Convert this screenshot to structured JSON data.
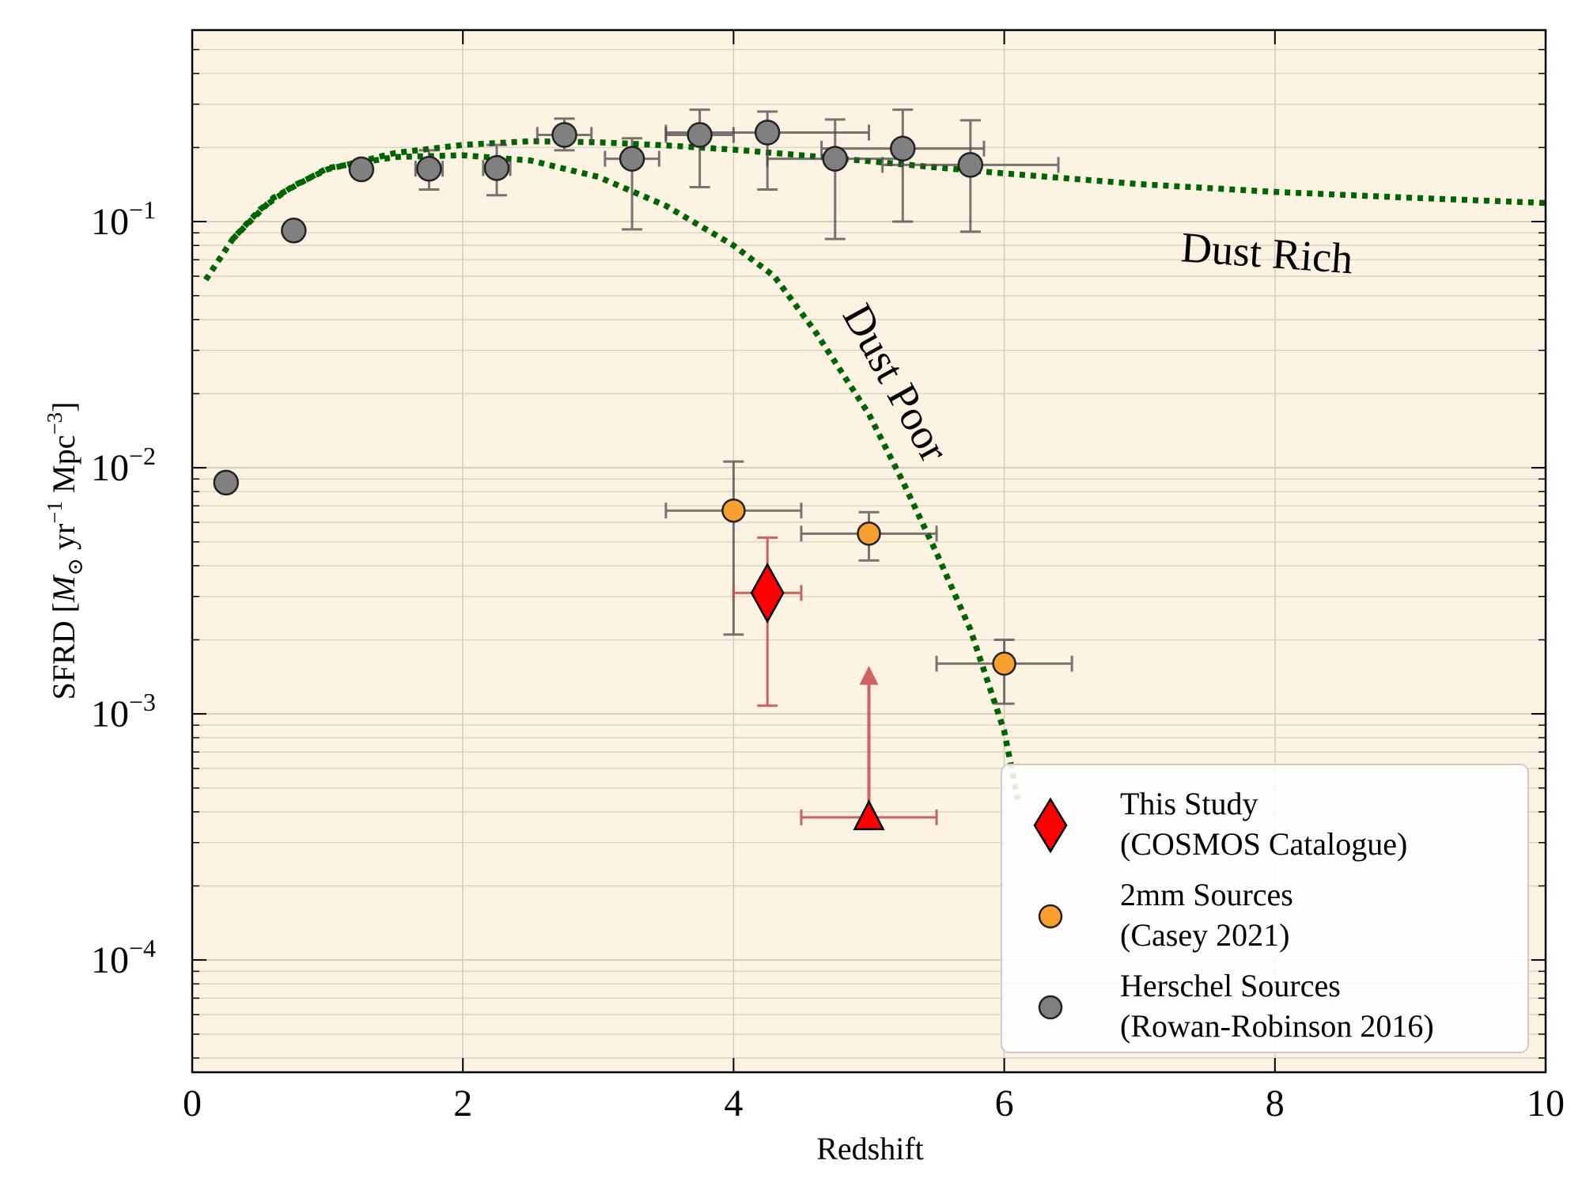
{
  "chart_data": {
    "type": "scatter",
    "xlabel": "Redshift",
    "ylabel": "SFRD [M⊙ yr⁻¹ Mpc⁻³]",
    "xlim": [
      0,
      10
    ],
    "ylim": [
      3.5e-05,
      0.6
    ],
    "yscale": "log",
    "x_ticks": [
      0,
      2,
      4,
      6,
      8,
      10
    ],
    "x_tick_labels": [
      "0",
      "2",
      "4",
      "6",
      "8",
      "10"
    ],
    "y_ticks": [
      0.0001,
      0.001,
      0.01,
      0.1
    ],
    "y_tick_labels": [
      {
        "base": "10",
        "exp": "−4"
      },
      {
        "base": "10",
        "exp": "−3"
      },
      {
        "base": "10",
        "exp": "−2"
      },
      {
        "base": "10",
        "exp": "−1"
      }
    ],
    "grid": true,
    "background": "#fdf3e3",
    "legend_position": "lower-right",
    "series": [
      {
        "name": "Herschel Sources (Rowan-Robinson 2016)",
        "legend_lines": [
          "Herschel Sources",
          "(Rowan-Robinson 2016)"
        ],
        "marker": "circle",
        "color": "#808080",
        "points": [
          {
            "x": 0.25,
            "y": 0.0087
          },
          {
            "x": 0.75,
            "y": 0.092
          },
          {
            "x": 1.25,
            "y": 0.163
          },
          {
            "x": 1.75,
            "y": 0.164,
            "xerr": 0.1,
            "ylo": 0.135,
            "yhi": 0.195
          },
          {
            "x": 2.25,
            "y": 0.165,
            "xerr": 0.1,
            "ylo": 0.128,
            "yhi": 0.205
          },
          {
            "x": 2.75,
            "y": 0.225,
            "xerr": 0.2,
            "ylo": 0.195,
            "yhi": 0.262
          },
          {
            "x": 3.25,
            "y": 0.18,
            "xerr": 0.2,
            "ylo": 0.093,
            "yhi": 0.218
          },
          {
            "x": 3.75,
            "y": 0.225,
            "xerr": 0.25,
            "ylo": 0.138,
            "yhi": 0.285
          },
          {
            "x": 4.25,
            "y": 0.23,
            "xerr": 0.75,
            "ylo": 0.135,
            "yhi": 0.28
          },
          {
            "x": 4.75,
            "y": 0.18,
            "xerr": 0.5,
            "ylo": 0.085,
            "yhi": 0.26
          },
          {
            "x": 5.25,
            "y": 0.198,
            "xerr": 0.6,
            "ylo": 0.1,
            "yhi": 0.285
          },
          {
            "x": 5.75,
            "y": 0.17,
            "xerr": 0.65,
            "ylo": 0.091,
            "yhi": 0.258
          }
        ]
      },
      {
        "name": "2mm Sources (Casey 2021)",
        "legend_lines": [
          "2mm Sources",
          "(Casey 2021)"
        ],
        "marker": "circle",
        "color": "#f7a030",
        "points": [
          {
            "x": 4.0,
            "y": 0.0067,
            "xlo": 3.5,
            "xhi": 4.5,
            "ylo": 0.0021,
            "yhi": 0.0106
          },
          {
            "x": 5.0,
            "y": 0.0054,
            "xlo": 4.5,
            "xhi": 5.5,
            "ylo": 0.0042,
            "yhi": 0.0066
          },
          {
            "x": 6.0,
            "y": 0.0016,
            "xlo": 5.5,
            "xhi": 6.5,
            "ylo": 0.0011,
            "yhi": 0.002
          }
        ]
      },
      {
        "name": "This Study (COSMOS Catalogue)",
        "legend_lines": [
          "This Study",
          "(COSMOS Catalogue)"
        ],
        "marker": "diamond",
        "color": "#ff0000",
        "points": [
          {
            "x": 4.25,
            "y": 0.0031,
            "xlo": 4.0,
            "xhi": 4.5,
            "ylo": 0.00108,
            "yhi": 0.0052
          },
          {
            "x": 5.0,
            "y": 0.00038,
            "xlo": 4.5,
            "xhi": 5.5,
            "lower_limit": true,
            "arrow_to": 0.0015,
            "marker": "triangle"
          }
        ]
      }
    ],
    "curves": [
      {
        "label": "Dust Rich",
        "color": "#006400",
        "style": "dotted",
        "points": [
          [
            0.1,
            0.058
          ],
          [
            0.3,
            0.085
          ],
          [
            0.5,
            0.112
          ],
          [
            0.75,
            0.14
          ],
          [
            1,
            0.163
          ],
          [
            1.5,
            0.19
          ],
          [
            2,
            0.205
          ],
          [
            2.5,
            0.212
          ],
          [
            3,
            0.21
          ],
          [
            3.5,
            0.204
          ],
          [
            4,
            0.196
          ],
          [
            4.5,
            0.186
          ],
          [
            5,
            0.176
          ],
          [
            5.5,
            0.166
          ],
          [
            6,
            0.157
          ],
          [
            7,
            0.142
          ],
          [
            8,
            0.132
          ],
          [
            9,
            0.125
          ],
          [
            10,
            0.119
          ]
        ]
      },
      {
        "label": "Dust Poor",
        "color": "#006400",
        "style": "dotted",
        "points": [
          [
            0.3,
            0.085
          ],
          [
            0.6,
            0.125
          ],
          [
            1,
            0.165
          ],
          [
            1.5,
            0.183
          ],
          [
            2,
            0.186
          ],
          [
            2.5,
            0.177
          ],
          [
            3,
            0.152
          ],
          [
            3.5,
            0.116
          ],
          [
            4,
            0.08
          ],
          [
            4.3,
            0.06
          ],
          [
            4.6,
            0.036
          ],
          [
            5,
            0.0165
          ],
          [
            5.25,
            0.0088
          ],
          [
            5.5,
            0.0045
          ],
          [
            5.75,
            0.0022
          ],
          [
            6,
            0.00085
          ],
          [
            6.1,
            0.00045
          ]
        ]
      }
    ],
    "annotations": [
      {
        "text": "Dust Rich",
        "x": 7.3,
        "y": 0.069,
        "rotation": 4
      },
      {
        "text": "Dust Poor",
        "x": 4.8,
        "y": 0.042,
        "rotation": 61
      }
    ]
  }
}
